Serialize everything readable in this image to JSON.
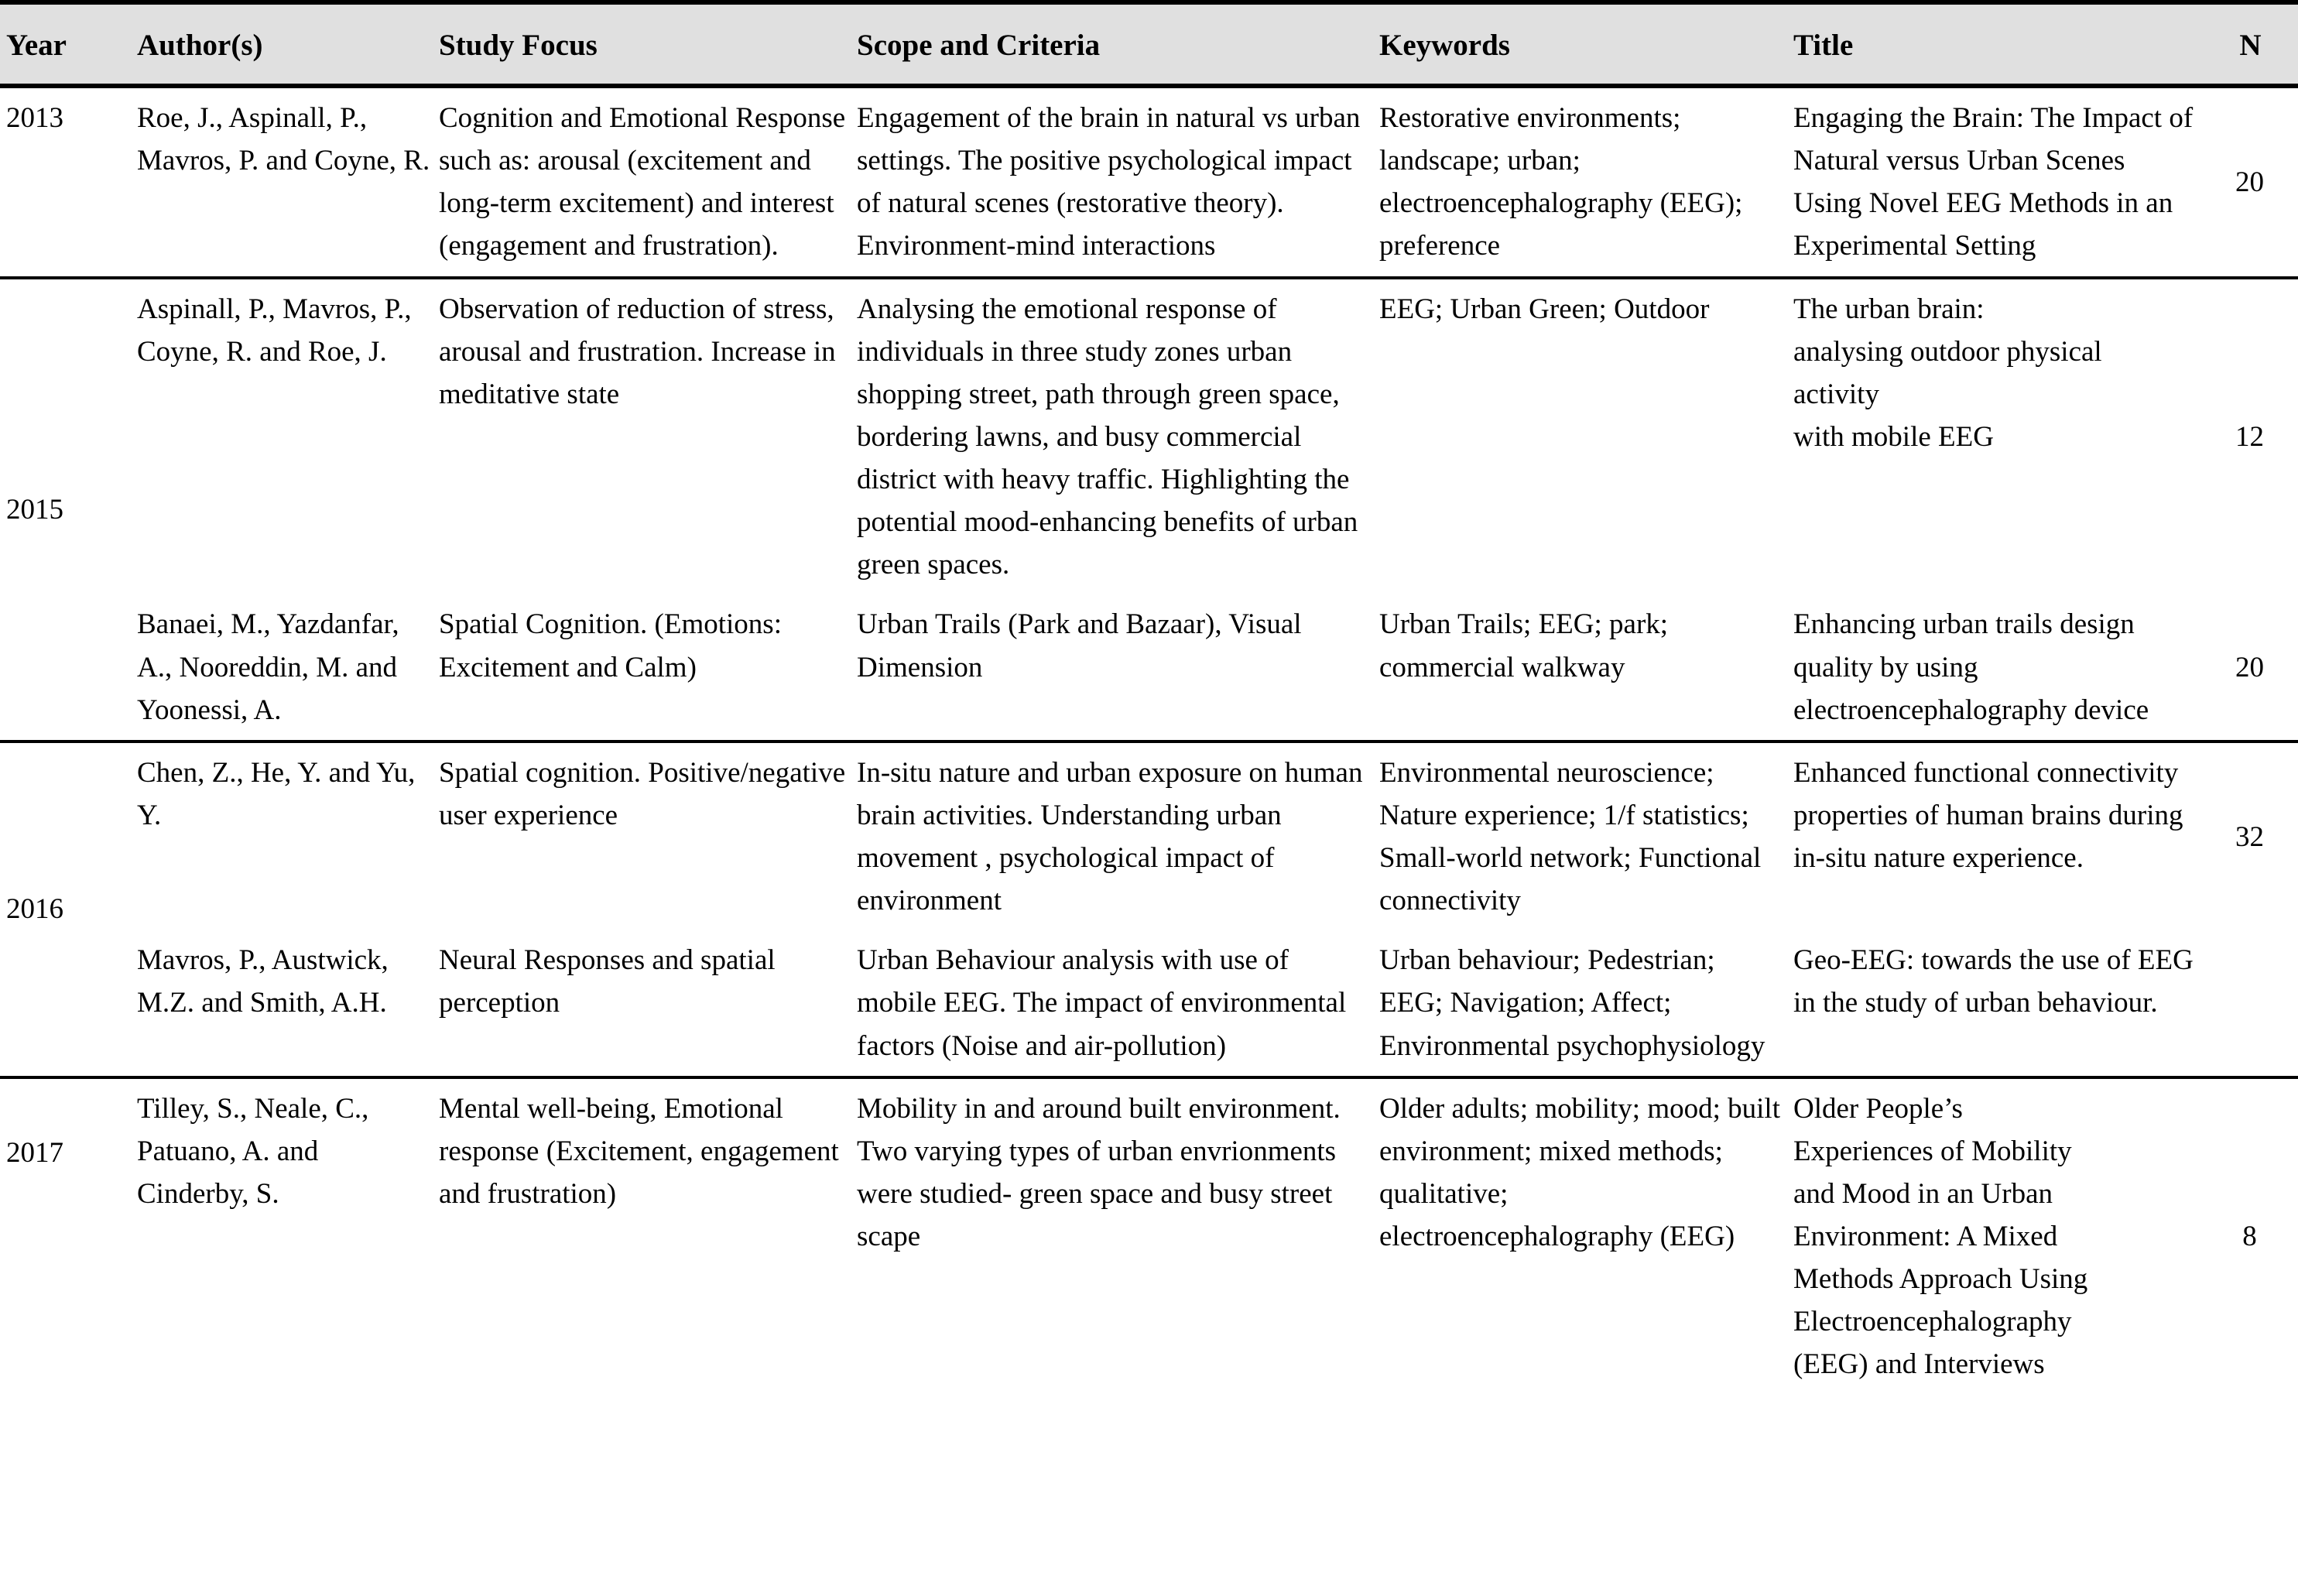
{
  "style": {
    "header_bg": "#e0e0e0",
    "border_color": "#000000",
    "text_color": "#000000"
  },
  "table": {
    "columns": [
      "Year",
      "Author(s)",
      "Study Focus",
      "Scope and Criteria",
      "Keywords",
      "Title",
      "N"
    ],
    "groups": [
      {
        "year": "2013",
        "rows": [
          {
            "authors": "Roe, J., Aspinall, P., Mavros, P. and Coyne, R.",
            "focus": "Cognition and Emotional Response such as: arousal (excitement and long-term excitement) and interest (engagement and frustration).",
            "scope": "Engagement of the brain in natural vs urban settings. The positive psychological impact of natural scenes (restorative theory). Environment-mind interactions",
            "keywords": "Restorative environments; landscape; urban; electroencephalography (EEG); preference",
            "title": "Engaging the Brain: The Impact of Natural versus Urban Scenes Using Novel EEG Methods in an Experimental Setting",
            "n": "20"
          }
        ]
      },
      {
        "year": "2015",
        "rows": [
          {
            "authors": "Aspinall, P., Mavros, P., Coyne, R. and Roe, J.",
            "focus": "Observation of reduction of stress, arousal and frustration. Increase in meditative state",
            "scope": "Analysing the emotional response of individuals in three study zones urban shopping street, path through green space, bordering lawns, and busy commercial district with heavy traffic. Highlighting the potential mood-enhancing benefits of urban green spaces.",
            "keywords": "EEG; Urban Green; Outdoor",
            "title": "The urban brain:\nanalysing outdoor physical\nactivity\nwith mobile EEG",
            "n": "12"
          },
          {
            "authors": "Banaei, M., Yazdanfar, A., Nooreddin, M. and Yoonessi, A.",
            "focus": "Spatial Cognition. (Emotions: Excitement and Calm)",
            "scope": "Urban Trails (Park and Bazaar), Visual Dimension",
            "keywords": "Urban Trails; EEG; park; commercial walkway",
            "title": "Enhancing urban trails design quality by using electroencephalography device",
            "n": "20"
          }
        ]
      },
      {
        "year": "2016",
        "rows": [
          {
            "authors": "Chen, Z., He, Y. and Yu, Y.",
            "focus": "Spatial cognition. Positive/negative user experience",
            "scope": "In-situ nature and urban exposure on human brain activities. Understanding urban movement , psychological impact of environment",
            "keywords": "Environmental neuroscience; Nature experience; 1/f statistics; Small-world network; Functional connectivity",
            "title": "Enhanced functional connectivity properties of human brains during in-situ nature experience.",
            "n": "32"
          },
          {
            "authors": "Mavros, P., Austwick, M.Z. and Smith, A.H.",
            "focus": "Neural Responses and spatial perception",
            "scope": "Urban Behaviour analysis with use of mobile EEG. The impact of environmental factors (Noise and air-pollution)",
            "keywords": "Urban behaviour; Pedestrian; EEG; Navigation; Affect; Environmental psychophysiology",
            "title": "Geo-EEG: towards the use of EEG in the study of urban behaviour.",
            "n": ""
          }
        ]
      },
      {
        "year": "2017",
        "rows": [
          {
            "authors": "Tilley, S., Neale, C., Patuano, A. and Cinderby, S.",
            "focus": "Mental well-being, Emotional response (Excitement, engagement and frustration)",
            "scope": "Mobility in and around built environment. Two varying types of urban envrionments were studied- green space and busy street scape",
            "keywords": "Older adults; mobility; mood; built environment; mixed methods; qualitative; electroencephalography (EEG)",
            "title": "Older People’s\nExperiences of Mobility\nand Mood in an Urban\nEnvironment: A Mixed\nMethods Approach Using\nElectroencephalography\n(EEG) and Interviews",
            "n": "8"
          }
        ]
      }
    ]
  }
}
